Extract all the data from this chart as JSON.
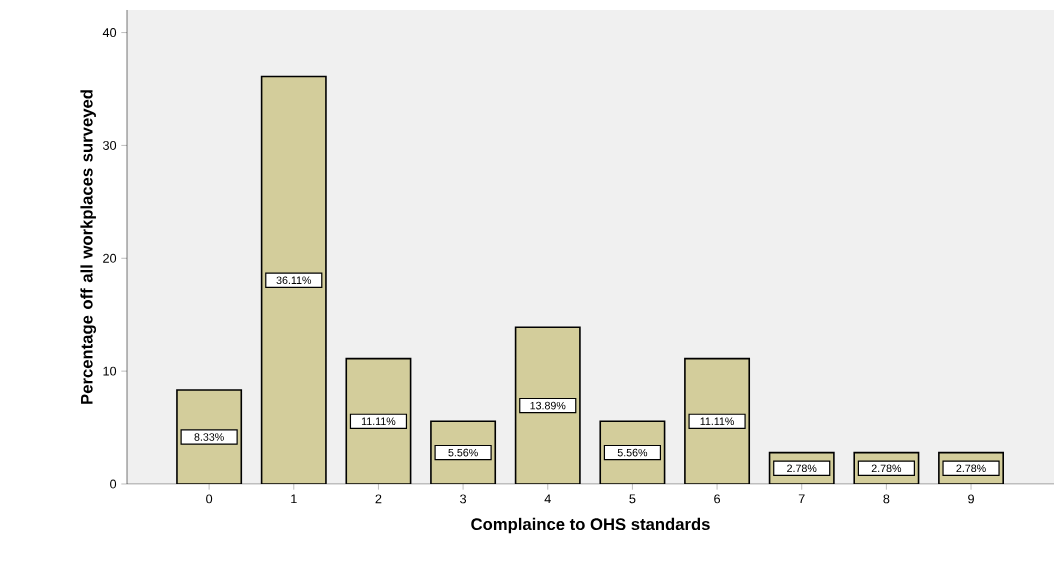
{
  "chart_data": {
    "type": "bar",
    "xlabel": "Complaince to OHS standards",
    "ylabel": "Percentage off all workplaces surveyed",
    "categories": [
      "0",
      "1",
      "2",
      "3",
      "4",
      "5",
      "6",
      "7",
      "8",
      "9"
    ],
    "values": [
      8.33,
      36.11,
      11.11,
      5.56,
      13.89,
      5.56,
      11.11,
      2.78,
      2.78,
      2.78
    ],
    "value_labels": [
      "8.33%",
      "36.11%",
      "11.11%",
      "5.56%",
      "13.89%",
      "5.56%",
      "11.11%",
      "2.78%",
      "2.78%",
      "2.78%"
    ],
    "color": "#d3cd9b",
    "ylim": [
      0,
      42
    ],
    "yticks": [
      0,
      10,
      20,
      30,
      40
    ]
  }
}
